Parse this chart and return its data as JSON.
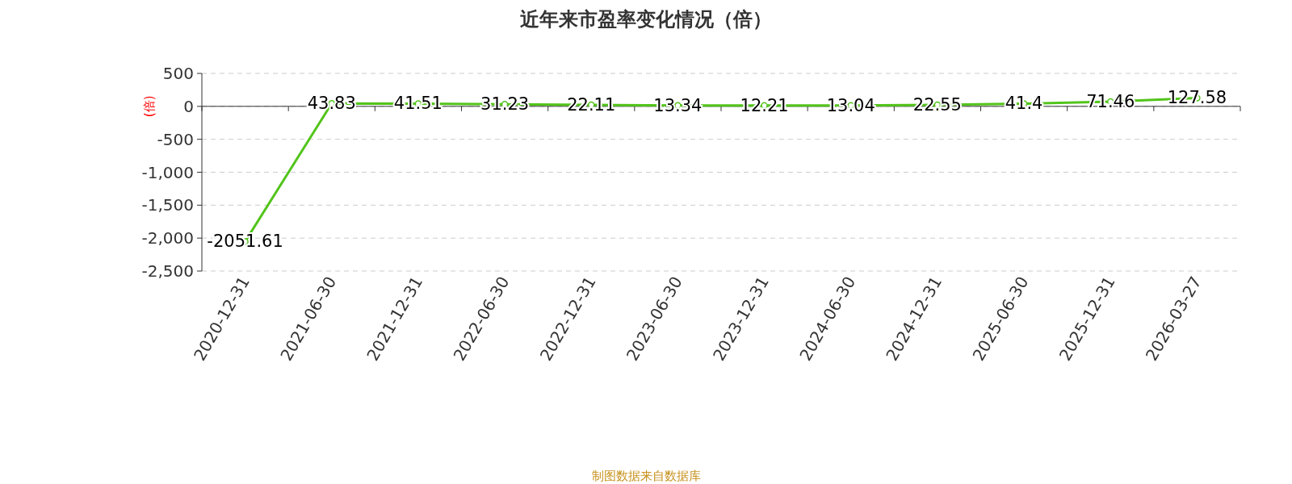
{
  "chart_data": {
    "type": "line",
    "title": "近年来市盈率变化情况（倍）",
    "ylabel": "(倍)",
    "categories": [
      "2020-12-31",
      "2021-06-30",
      "2021-12-31",
      "2022-06-30",
      "2022-12-31",
      "2023-06-30",
      "2023-12-31",
      "2024-06-30",
      "2024-12-31",
      "2025-06-30",
      "2025-12-31",
      "2026-03-27"
    ],
    "series": [
      {
        "color": "#52c41a",
        "values": [
          -2051.61,
          43.83,
          41.51,
          31.23,
          22.11,
          13.34,
          12.21,
          13.04,
          22.55,
          41.4,
          71.46,
          127.58
        ]
      }
    ],
    "ylim": [
      -2500,
      500
    ],
    "yticks": [
      {
        "value": -2500,
        "label": "-2,500"
      },
      {
        "value": -2000,
        "label": "-2,000"
      },
      {
        "value": -1500,
        "label": "-1,500"
      },
      {
        "value": -1000,
        "label": "-1,000"
      },
      -500,
      0,
      500
    ],
    "grid": "y",
    "marker": "circle",
    "data_labels": true,
    "annotations": [
      "制图数据来自数据库"
    ]
  }
}
